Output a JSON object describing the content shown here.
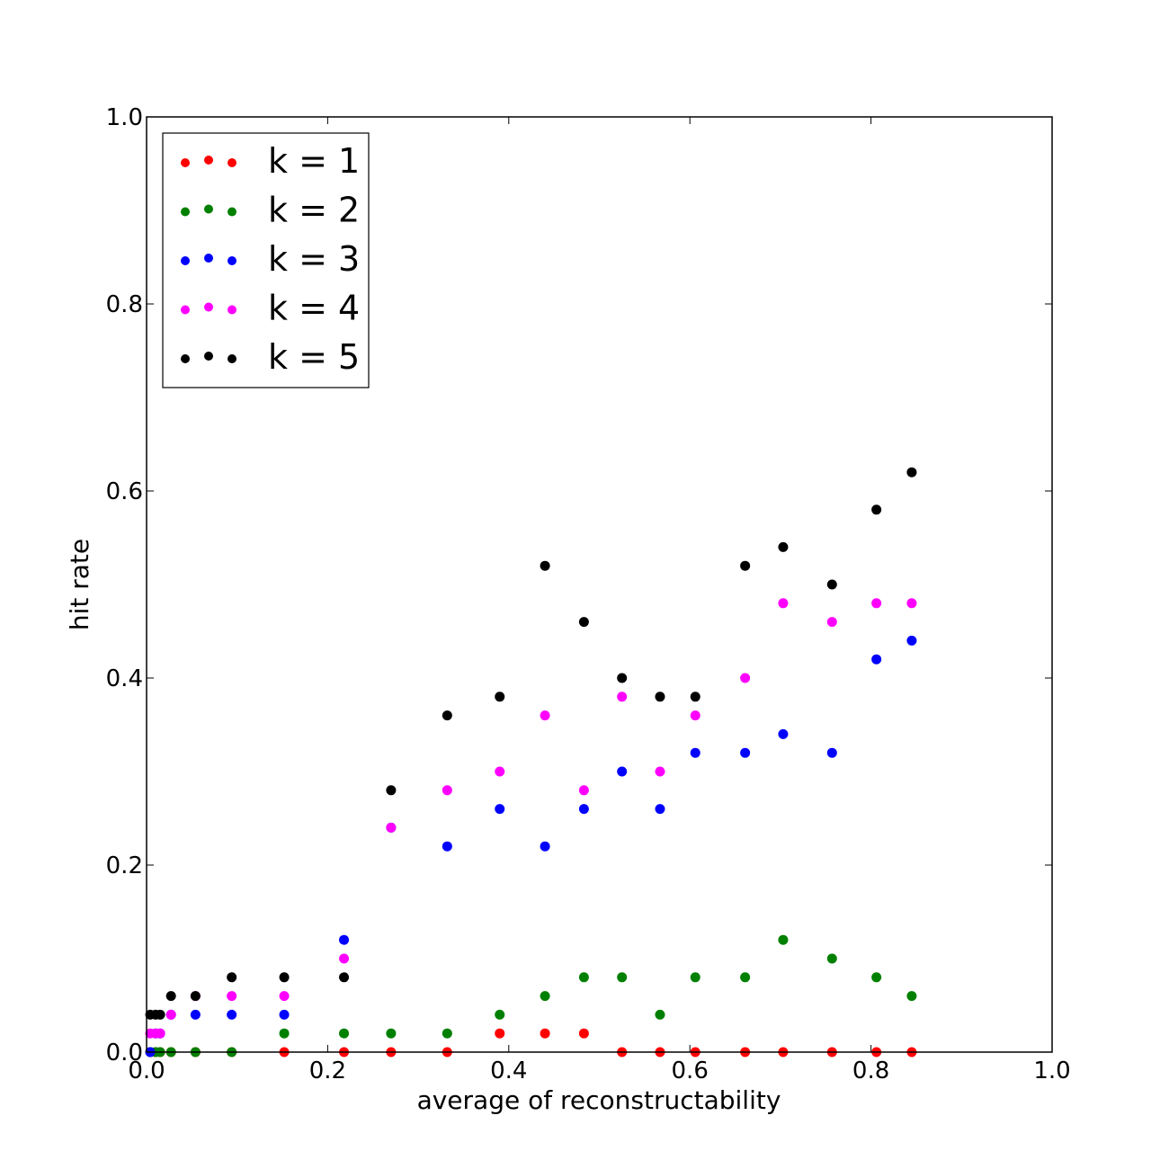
{
  "chart_data": {
    "type": "scatter",
    "title": "",
    "xlabel": "average of reconstructability",
    "ylabel": "hit rate",
    "xlim": [
      0.0,
      1.0
    ],
    "ylim": [
      0.0,
      1.0
    ],
    "xticks": [
      "0.0",
      "0.2",
      "0.4",
      "0.6",
      "0.8",
      "1.0"
    ],
    "yticks": [
      "0.0",
      "0.2",
      "0.4",
      "0.6",
      "0.8",
      "1.0"
    ],
    "grid": false,
    "legend_position": "top-left",
    "x": [
      0.004,
      0.01,
      0.015,
      0.027,
      0.054,
      0.094,
      0.152,
      0.218,
      0.27,
      0.332,
      0.39,
      0.44,
      0.483,
      0.525,
      0.567,
      0.606,
      0.661,
      0.703,
      0.757,
      0.806,
      0.845
    ],
    "series": [
      {
        "name": "k = 1",
        "color": "#ff0000",
        "values": [
          0.0,
          0.0,
          0.0,
          0.0,
          0.0,
          0.0,
          0.0,
          0.0,
          0.0,
          0.0,
          0.02,
          0.02,
          0.02,
          0.0,
          0.0,
          0.0,
          0.0,
          0.0,
          0.0,
          0.0,
          0.0
        ]
      },
      {
        "name": "k = 2",
        "color": "#008000",
        "values": [
          0.0,
          0.0,
          0.0,
          0.0,
          0.0,
          0.0,
          0.02,
          0.02,
          0.02,
          0.02,
          0.04,
          0.06,
          0.08,
          0.08,
          0.04,
          0.08,
          0.08,
          0.12,
          0.1,
          0.08,
          0.06
        ]
      },
      {
        "name": "k = 3",
        "color": "#0000ff",
        "values": [
          0.0,
          0.02,
          0.02,
          0.04,
          0.04,
          0.04,
          0.04,
          0.12,
          0.24,
          0.22,
          0.26,
          0.22,
          0.26,
          0.3,
          0.26,
          0.32,
          0.32,
          0.34,
          0.32,
          0.42,
          0.44
        ]
      },
      {
        "name": "k = 4",
        "color": "#ff00ff",
        "values": [
          0.02,
          0.02,
          0.02,
          0.04,
          0.06,
          0.06,
          0.06,
          0.1,
          0.24,
          0.28,
          0.3,
          0.36,
          0.28,
          0.38,
          0.3,
          0.36,
          0.4,
          0.48,
          0.46,
          0.48,
          0.48
        ]
      },
      {
        "name": "k = 5",
        "color": "#000000",
        "values": [
          0.04,
          0.04,
          0.04,
          0.06,
          0.06,
          0.08,
          0.08,
          0.08,
          0.28,
          0.36,
          0.38,
          0.52,
          0.46,
          0.4,
          0.38,
          0.38,
          0.52,
          0.54,
          0.5,
          0.58,
          0.62
        ]
      }
    ]
  }
}
